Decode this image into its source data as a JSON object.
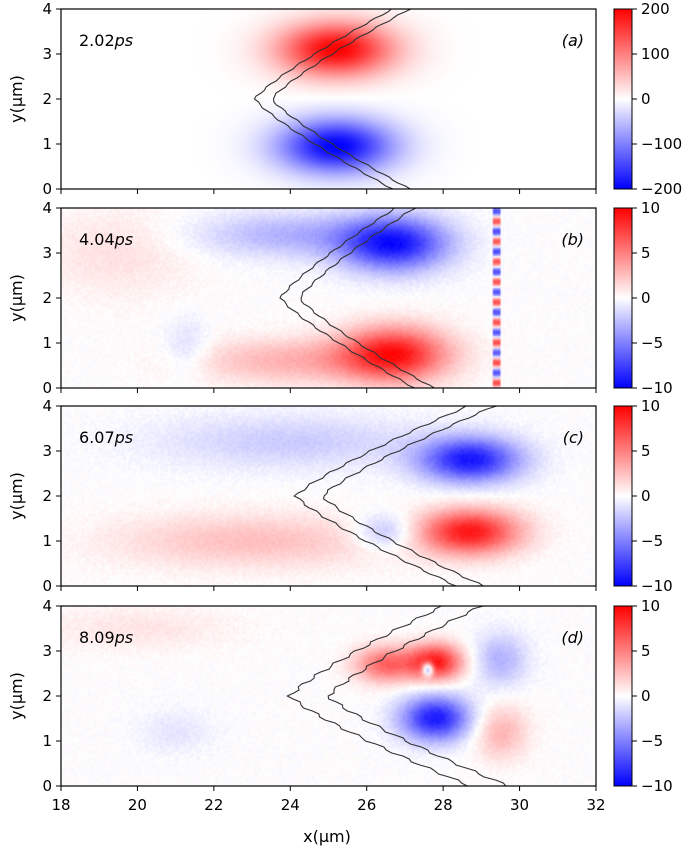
{
  "chart_data": {
    "type": "heatmap",
    "xlabel": "x(μm)",
    "ylabel": "y(μm)",
    "xlim": [
      18,
      32
    ],
    "ylim": [
      0,
      4
    ],
    "x_ticks": [
      "18",
      "20",
      "22",
      "24",
      "26",
      "28",
      "30",
      "32"
    ],
    "y_ticks": [
      "0",
      "1",
      "2",
      "3",
      "4"
    ],
    "colormap": "bwr",
    "colors": {
      "negative": "#0000ff",
      "zero": "#ffffff",
      "positive": "#ff0000",
      "contour": "#333333"
    },
    "panels": [
      {
        "time": "2.02",
        "time_unit": "ps",
        "label": "(a)",
        "clim": [
          -200,
          200
        ],
        "colorbar_ticks": [
          "200",
          "100",
          "0",
          "−100",
          "−200"
        ],
        "blobs": [
          {
            "x": 25.2,
            "y": 3.1,
            "sx": 1.5,
            "sy": 0.6,
            "amp": 200
          },
          {
            "x": 25.2,
            "y": 0.95,
            "sx": 1.5,
            "sy": 0.6,
            "amp": -200
          }
        ],
        "contour": {
          "apex_x": 23.3,
          "tip_top_x": 26.9,
          "tip_bottom_x": 26.9,
          "width": 0.45
        }
      },
      {
        "time": "4.04",
        "time_unit": "ps",
        "label": "(b)",
        "clim": [
          -10,
          10
        ],
        "colorbar_ticks": [
          "10",
          "5",
          "0",
          "−5",
          "−10"
        ],
        "blobs": [
          {
            "x": 26.7,
            "y": 3.2,
            "sx": 1.4,
            "sy": 0.6,
            "amp": -9
          },
          {
            "x": 26.7,
            "y": 0.75,
            "sx": 1.4,
            "sy": 0.6,
            "amp": 9
          },
          {
            "x": 24.0,
            "y": 3.4,
            "sx": 2.5,
            "sy": 0.5,
            "amp": -3
          },
          {
            "x": 24.0,
            "y": 0.6,
            "sx": 2.5,
            "sy": 0.5,
            "amp": 3
          },
          {
            "x": 19.5,
            "y": 3.0,
            "sx": 2.0,
            "sy": 1.0,
            "amp": 1.2
          },
          {
            "x": 21.3,
            "y": 0.9,
            "sx": 0.6,
            "sy": 0.6,
            "amp": -1.5
          }
        ],
        "contour": {
          "apex_x": 24.0,
          "tip_top_x": 27.0,
          "tip_bottom_x": 27.5,
          "width": 0.5
        },
        "stripe_x": 29.4
      },
      {
        "time": "6.07",
        "time_unit": "ps",
        "label": "(c)",
        "clim": [
          -10,
          10
        ],
        "colorbar_ticks": [
          "10",
          "5",
          "0",
          "−5",
          "−10"
        ],
        "blobs": [
          {
            "x": 28.7,
            "y": 2.8,
            "sx": 1.3,
            "sy": 0.5,
            "amp": -9
          },
          {
            "x": 28.7,
            "y": 1.2,
            "sx": 1.3,
            "sy": 0.5,
            "amp": 9
          },
          {
            "x": 24.0,
            "y": 3.2,
            "sx": 3.5,
            "sy": 0.6,
            "amp": -2
          },
          {
            "x": 23.0,
            "y": 1.0,
            "sx": 3.5,
            "sy": 0.6,
            "amp": 2.5
          },
          {
            "x": 26.5,
            "y": 1.2,
            "sx": 0.8,
            "sy": 0.4,
            "amp": -3
          }
        ],
        "contour": {
          "apex_x": 24.5,
          "tip_top_x": 29.0,
          "tip_bottom_x": 28.7,
          "width": 0.7
        }
      },
      {
        "time": "8.09",
        "time_unit": "ps",
        "label": "(d)",
        "clim": [
          -10,
          10
        ],
        "colorbar_ticks": [
          "10",
          "5",
          "0",
          "−5",
          "−10"
        ],
        "blobs": [
          {
            "x": 27.8,
            "y": 2.75,
            "sx": 0.7,
            "sy": 0.4,
            "amp": 9
          },
          {
            "x": 26.5,
            "y": 2.7,
            "sx": 0.8,
            "sy": 0.4,
            "amp": 6
          },
          {
            "x": 27.8,
            "y": 1.5,
            "sx": 0.9,
            "sy": 0.5,
            "amp": -9
          },
          {
            "x": 29.5,
            "y": 2.8,
            "sx": 0.7,
            "sy": 0.6,
            "amp": -3
          },
          {
            "x": 29.5,
            "y": 1.2,
            "sx": 0.7,
            "sy": 0.6,
            "amp": 3
          },
          {
            "x": 27.6,
            "y": 2.6,
            "sx": 0.15,
            "sy": 0.15,
            "amp": -10
          },
          {
            "x": 20.0,
            "y": 3.5,
            "sx": 2.5,
            "sy": 0.5,
            "amp": 1
          },
          {
            "x": 21.0,
            "y": 1.2,
            "sx": 1.0,
            "sy": 0.5,
            "amp": -1
          }
        ],
        "contour": {
          "apex_x": 24.5,
          "tip_top_x": 28.5,
          "tip_bottom_x": 29.2,
          "width": 1.0
        }
      }
    ]
  }
}
